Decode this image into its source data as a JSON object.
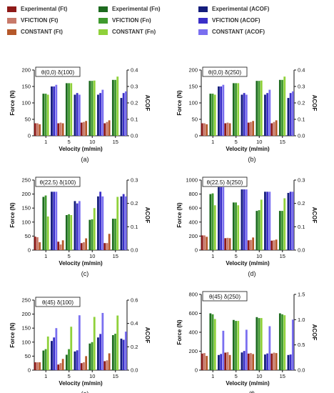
{
  "legend": [
    {
      "label": "Experimental (Ft)",
      "color": "#8e1a18"
    },
    {
      "label": "VFICTION    (Ft)",
      "color": "#c87a6a"
    },
    {
      "label": "CONSTANT (Ft)",
      "color": "#b5582a"
    },
    {
      "label": "Experimental (Fn)",
      "color": "#1d6a1f"
    },
    {
      "label": "VFICTION       (Fn)",
      "color": "#3f9a2e"
    },
    {
      "label": "CONSTANT (Fn)",
      "color": "#8fd13a"
    },
    {
      "label": "Experimental (ACOF)",
      "color": "#141d7c"
    },
    {
      "label": "VFICTION   (ACOF)",
      "color": "#3a2fc8"
    },
    {
      "label": "CONSTANT (ACOF)",
      "color": "#7a6ff0"
    }
  ],
  "colors": {
    "ft": [
      "#8e1a18",
      "#c87a6a",
      "#b5582a"
    ],
    "fn": [
      "#1d6a1f",
      "#3f9a2e",
      "#8fd13a"
    ],
    "acof": [
      "#141d7c",
      "#3a2fc8",
      "#7a6ff0"
    ]
  },
  "chart_data": [
    {
      "type": "bar",
      "caption": "(a)",
      "title": "θ(0,0) δ(100)",
      "xlabel": "Velocity (m/min)",
      "ylabel": "Force (N)",
      "y2label": "ACOF",
      "categories": [
        "1",
        "5",
        "10",
        "15"
      ],
      "ylim": [
        0,
        200
      ],
      "yticks": [
        0,
        50,
        100,
        150,
        200
      ],
      "y2lim": [
        0,
        0.4
      ],
      "y2ticks": [
        "0.0",
        "0.1",
        "0.2",
        "0.3",
        "0.4"
      ],
      "series": {
        "ft": [
          [
            38,
            38,
            35
          ],
          [
            38,
            40,
            38
          ],
          [
            40,
            42,
            45
          ],
          [
            38,
            42,
            47
          ]
        ],
        "fn": [
          [
            128,
            128,
            125
          ],
          [
            160,
            160,
            160
          ],
          [
            167,
            167,
            168
          ],
          [
            170,
            170,
            180
          ]
        ],
        "acof": [
          [
            0.3,
            0.3,
            0.31
          ],
          [
            0.25,
            0.26,
            0.25
          ],
          [
            0.25,
            0.26,
            0.28
          ],
          [
            0.23,
            0.26,
            0.27
          ]
        ]
      }
    },
    {
      "type": "bar",
      "caption": "(b)",
      "title": "θ(0,0) δ(250)",
      "xlabel": "Velocity (m/min)",
      "ylabel": "Force (N)",
      "y2label": "ACOF",
      "categories": [
        "1",
        "5",
        "10",
        "15"
      ],
      "ylim": [
        0,
        200
      ],
      "yticks": [
        0,
        50,
        100,
        150,
        200
      ],
      "y2lim": [
        0,
        0.4
      ],
      "y2ticks": [
        "0.0",
        "0.1",
        "0.2",
        "0.3",
        "0.4"
      ],
      "series": {
        "ft": [
          [
            38,
            38,
            35
          ],
          [
            38,
            40,
            38
          ],
          [
            40,
            42,
            45
          ],
          [
            38,
            42,
            47
          ]
        ],
        "fn": [
          [
            128,
            128,
            125
          ],
          [
            160,
            160,
            160
          ],
          [
            167,
            167,
            168
          ],
          [
            170,
            170,
            180
          ]
        ],
        "acof": [
          [
            0.3,
            0.3,
            0.31
          ],
          [
            0.25,
            0.26,
            0.25
          ],
          [
            0.25,
            0.26,
            0.28
          ],
          [
            0.23,
            0.26,
            0.27
          ]
        ]
      }
    },
    {
      "type": "bar",
      "caption": "(c)",
      "title": "θ(22.5) δ(100)",
      "xlabel": "Velocity (m/min)",
      "ylabel": "Force (N)",
      "y2label": "ACOF",
      "categories": [
        "1",
        "5",
        "10",
        "15"
      ],
      "ylim": [
        0,
        250
      ],
      "yticks": [
        0,
        50,
        100,
        150,
        200,
        250
      ],
      "y2lim": [
        0,
        0.3
      ],
      "y2ticks": [
        "0.0",
        "0.1",
        "0.2",
        "0.3"
      ],
      "series": {
        "ft": [
          [
            48,
            46,
            28
          ],
          [
            30,
            20,
            35
          ],
          [
            25,
            28,
            42
          ],
          [
            25,
            25,
            58
          ]
        ],
        "fn": [
          [
            190,
            195,
            120
          ],
          [
            125,
            128,
            125
          ],
          [
            108,
            110,
            150
          ],
          [
            112,
            112,
            190
          ]
        ],
        "acof": [
          [
            0.25,
            0.25,
            0.25
          ],
          [
            0.21,
            0.2,
            0.21
          ],
          [
            0.23,
            0.25,
            0.23
          ],
          [
            0.23,
            0.24,
            0.23
          ]
        ]
      }
    },
    {
      "type": "bar",
      "caption": "(d)",
      "title": "θ(22.5) δ(250)",
      "xlabel": "Velocity (m/min)",
      "ylabel": "Force (N)",
      "y2label": "ACOF",
      "categories": [
        "1",
        "5",
        "10",
        "15"
      ],
      "ylim": [
        0,
        1000
      ],
      "yticks": [
        0,
        200,
        400,
        600,
        800,
        1000
      ],
      "y2lim": [
        0,
        0.3
      ],
      "y2ticks": [
        "0.0",
        "0.1",
        "0.2",
        "0.3"
      ],
      "series": {
        "ft": [
          [
            210,
            210,
            190
          ],
          [
            170,
            175,
            170
          ],
          [
            140,
            145,
            180
          ],
          [
            135,
            140,
            150
          ]
        ],
        "fn": [
          [
            800,
            810,
            640
          ],
          [
            680,
            680,
            640
          ],
          [
            560,
            570,
            720
          ],
          [
            560,
            560,
            740
          ]
        ],
        "acof": [
          [
            0.27,
            0.27,
            0.27
          ],
          [
            0.26,
            0.26,
            0.26
          ],
          [
            0.25,
            0.25,
            0.25
          ],
          [
            0.245,
            0.25,
            0.25
          ]
        ]
      }
    },
    {
      "type": "bar",
      "caption": "(e)",
      "title": "θ(45) δ(100)",
      "xlabel": "Velocity (m/min)",
      "ylabel": "Force (N)",
      "y2label": "ACOF",
      "categories": [
        "1",
        "5",
        "10",
        "15"
      ],
      "ylim": [
        0,
        250
      ],
      "yticks": [
        0,
        50,
        100,
        150,
        200,
        250
      ],
      "y2lim": [
        0,
        0.6
      ],
      "y2ticks": [
        "0.0",
        "0.2",
        "0.4",
        "0.6"
      ],
      "series": {
        "ft": [
          [
            28,
            28,
            28
          ],
          [
            20,
            25,
            40
          ],
          [
            25,
            28,
            50
          ],
          [
            32,
            35,
            60
          ]
        ],
        "fn": [
          [
            70,
            75,
            120
          ],
          [
            55,
            75,
            155
          ],
          [
            95,
            100,
            190
          ],
          [
            125,
            130,
            195
          ]
        ],
        "acof": [
          [
            0.25,
            0.28,
            0.36
          ],
          [
            0.16,
            0.17,
            0.47
          ],
          [
            0.28,
            0.31,
            0.49
          ],
          [
            0.27,
            0.26,
            0.33
          ]
        ]
      }
    },
    {
      "type": "bar",
      "caption": "(f)",
      "title": "θ(45) δ(250)",
      "xlabel": "Velocity (m/min)",
      "ylabel": "Force (N)",
      "y2label": "ACOF",
      "categories": [
        "1",
        "5",
        "10",
        "15"
      ],
      "ylim": [
        0,
        800
      ],
      "yticks": [
        0,
        200,
        400,
        600,
        800
      ],
      "y2lim": [
        0,
        1.5
      ],
      "y2ticks": [
        "0.0",
        "0.5",
        "1.0",
        "1.5"
      ],
      "series": {
        "ft": [
          [
            175,
            180,
            150
          ],
          [
            185,
            190,
            160
          ],
          [
            175,
            180,
            170
          ],
          [
            175,
            185,
            180
          ]
        ],
        "fn": [
          [
            600,
            590,
            540
          ],
          [
            530,
            520,
            520
          ],
          [
            560,
            550,
            550
          ],
          [
            600,
            590,
            580
          ]
        ],
        "acof": [
          [
            0.3,
            0.32,
            0.78
          ],
          [
            0.35,
            0.38,
            0.8
          ],
          [
            0.31,
            0.33,
            0.87
          ],
          [
            0.3,
            0.31,
            1.0
          ]
        ]
      }
    }
  ]
}
